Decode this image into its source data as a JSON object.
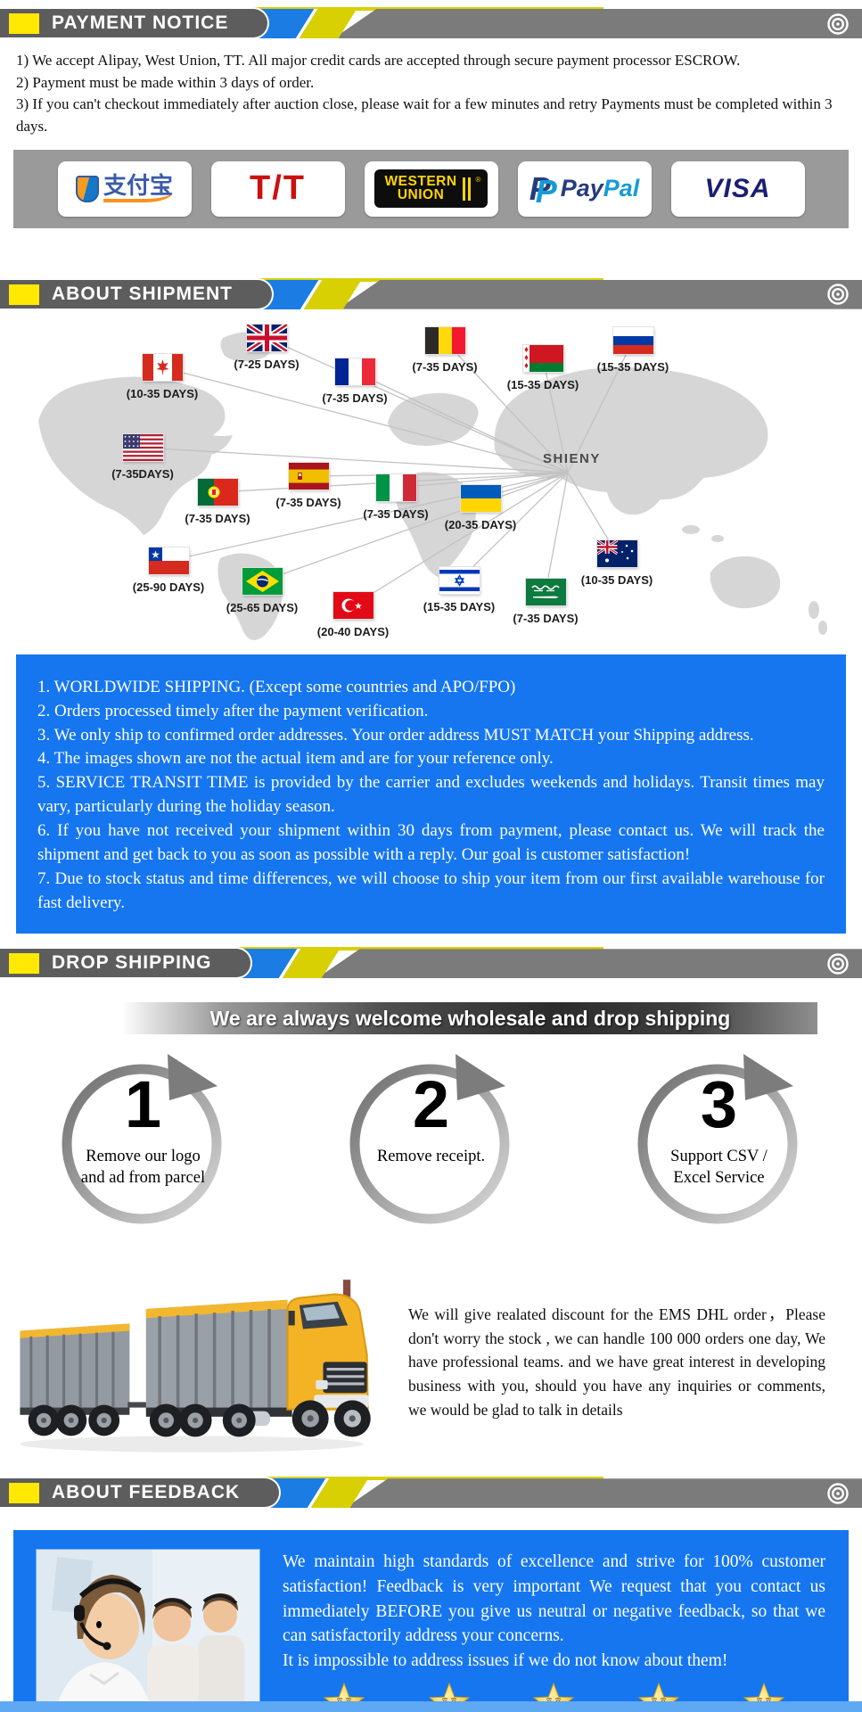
{
  "theme": {
    "accent_yellow": "#ffe903",
    "accent_blue": "#1b7ce4",
    "header_gray": "#5d5d5d",
    "strip_gray": "#9a9a9a",
    "info_blue": "#1576f0",
    "map_gray": "#d6d6d6"
  },
  "payment_notice": {
    "title": "PAYMENT NOTICE",
    "lines": [
      "1) We accept Alipay, West Union, TT. All major credit cards are accepted through secure payment processor ESCROW.",
      "2) Payment must be made within 3 days of order.",
      "3) If you can't checkout immediately after auction close, please wait for a few minutes and retry Payments must be completed within 3 days."
    ],
    "methods": {
      "alipay": {
        "label": "支付宝"
      },
      "tt": {
        "label": "T/T"
      },
      "western_union": {
        "line1": "WESTERN",
        "line2": "UNION",
        "reg": "®"
      },
      "paypal": {
        "icon1": "P",
        "icon2": "P",
        "part1": "Pay",
        "part2": "Pal"
      },
      "visa": {
        "label": "VISA"
      }
    }
  },
  "about_shipment": {
    "title": "ABOUT SHIPMENT",
    "hub_label": "SHIENY",
    "destinations": [
      {
        "country": "canada",
        "days": "(10-35 DAYS)"
      },
      {
        "country": "uk",
        "days": "(7-25 DAYS)"
      },
      {
        "country": "france",
        "days": "(7-35 DAYS)"
      },
      {
        "country": "belgium",
        "days": "(7-35 DAYS)"
      },
      {
        "country": "belarus",
        "days": "(15-35 DAYS)"
      },
      {
        "country": "russia",
        "days": "(15-35 DAYS)"
      },
      {
        "country": "usa",
        "days": "(7-35DAYS)"
      },
      {
        "country": "portugal",
        "days": "(7-35 DAYS)"
      },
      {
        "country": "spain",
        "days": "(7-35 DAYS)"
      },
      {
        "country": "italy",
        "days": "(7-35 DAYS)"
      },
      {
        "country": "ukraine",
        "days": "(20-35 DAYS)"
      },
      {
        "country": "chile",
        "days": "(25-90 DAYS)"
      },
      {
        "country": "brazil",
        "days": "(25-65 DAYS)"
      },
      {
        "country": "turkey",
        "days": "(20-40 DAYS)"
      },
      {
        "country": "israel",
        "days": "(15-35 DAYS)"
      },
      {
        "country": "saudi-arabia",
        "days": "(7-35 DAYS)"
      },
      {
        "country": "australia",
        "days": "(10-35 DAYS)"
      }
    ],
    "notes": [
      "1. WORLDWIDE SHIPPING. (Except some countries and APO/FPO)",
      "2. Orders processed timely after the payment verification.",
      "3. We only ship to confirmed order addresses. Your order address MUST MATCH your Shipping address.",
      "4. The images shown are not the actual item and are for your reference only.",
      "5. SERVICE TRANSIT TIME is provided by the carrier and excludes weekends and holidays. Transit times may vary, particularly during the holiday season.",
      "6. If you have not received your shipment within 30 days from payment, please contact us. We will track the shipment and get back to you as soon as possible with a reply. Our goal is customer satisfaction!",
      "7. Due to stock status and time differences, we will choose to ship your item from our first available warehouse for fast delivery."
    ]
  },
  "drop_shipping": {
    "title": "DROP SHIPPING",
    "banner": "We are always welcome wholesale and drop shipping",
    "steps": [
      {
        "number": "1",
        "text": "Remove our logo and ad from parcel"
      },
      {
        "number": "2",
        "text": "Remove receipt."
      },
      {
        "number": "3",
        "text": "Support CSV / Excel Service"
      }
    ],
    "wholesale_text": "We will give realated discount for the EMS DHL order，Please don't worry the stock , we can handle 100 000 orders one day,  We have professional teams. and we have great interest in developing business with you, should you have any inquiries or comments, we would be glad to talk in details"
  },
  "about_feedback": {
    "title": "ABOUT FEEDBACK",
    "paragraph1": "We maintain high standards of excellence and strive for 100% customer satisfaction! Feedback is very important We request that you contact us immediately BEFORE you give us neutral or negative feedback, so that we can satisfactorily address your concerns.",
    "paragraph2": "It is impossible to address issues if we do not know about them!",
    "star_count": 5
  }
}
